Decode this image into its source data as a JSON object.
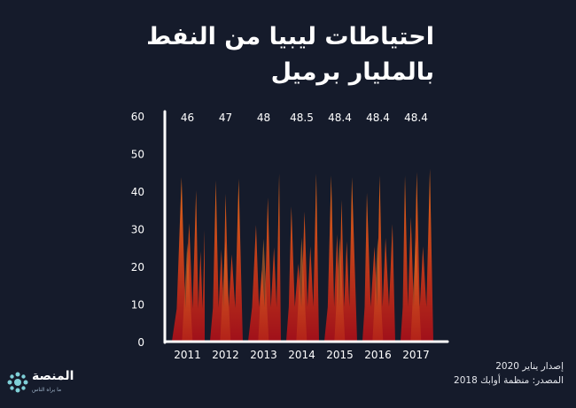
{
  "title_lines": [
    "احتياطات ليبيا من النفط",
    "بالمليار برميل"
  ],
  "footer": {
    "release": "إصدار يناير 2020",
    "source": "المصدر: منظمة أوابك 2018"
  },
  "logo": {
    "name": "المنصة",
    "tagline": "ما يراه الناس"
  },
  "colors": {
    "background": "#151b2b",
    "axis": "#ffffff",
    "spike_top": "#e06a1a",
    "spike_bottom": "#a0101a"
  },
  "chart_data": {
    "type": "area",
    "title": "احتياطات ليبيا من النفط بالمليار برميل",
    "categories": [
      "2011",
      "2012",
      "2013",
      "2014",
      "2015",
      "2016",
      "2017"
    ],
    "values": [
      46,
      47,
      48,
      48.5,
      48.4,
      48.4,
      48.4
    ],
    "value_labels": [
      "46",
      "47",
      "48",
      "48.5",
      "48.4",
      "48.4",
      "48.4"
    ],
    "yticks": [
      0,
      10,
      20,
      30,
      40,
      50,
      60
    ],
    "ylim": [
      0,
      60
    ],
    "xlabel": "",
    "ylabel": "",
    "grid": false
  }
}
